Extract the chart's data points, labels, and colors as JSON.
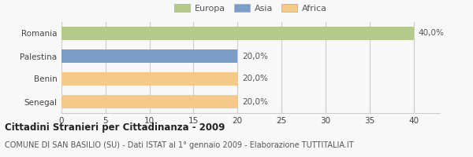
{
  "categories": [
    "Romania",
    "Palestina",
    "Benin",
    "Senegal"
  ],
  "values": [
    40,
    20,
    20,
    20
  ],
  "labels": [
    "40,0%",
    "20,0%",
    "20,0%",
    "20,0%"
  ],
  "bar_colors": [
    "#b5c98a",
    "#7b9dc7",
    "#f5c98a",
    "#f5c98a"
  ],
  "legend_labels": [
    "Europa",
    "Asia",
    "Africa"
  ],
  "legend_colors": [
    "#b5c98a",
    "#7b9dc7",
    "#f5c98a"
  ],
  "xlim": [
    0,
    43
  ],
  "xticks": [
    0,
    5,
    10,
    15,
    20,
    25,
    30,
    35,
    40
  ],
  "title": "Cittadini Stranieri per Cittadinanza - 2009",
  "subtitle": "COMUNE DI SAN BASILIO (SU) - Dati ISTAT al 1° gennaio 2009 - Elaborazione TUTTITALIA.IT",
  "background_color": "#f8f8f8",
  "grid_color": "#cccccc",
  "bar_height": 0.6,
  "title_fontsize": 8.5,
  "subtitle_fontsize": 7,
  "tick_fontsize": 7.5,
  "label_fontsize": 7.5,
  "legend_fontsize": 8
}
